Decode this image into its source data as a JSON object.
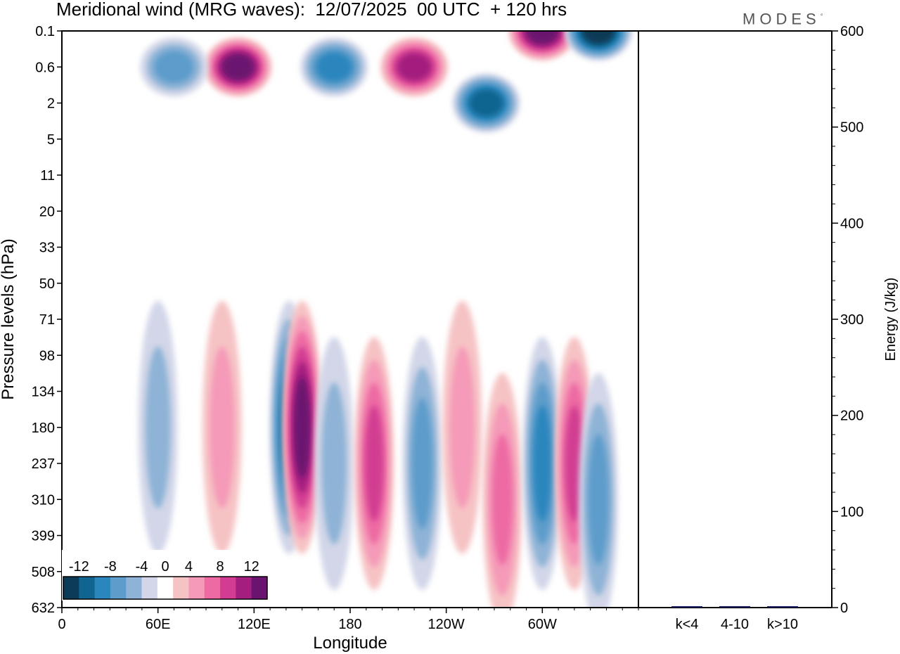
{
  "title": "Meridional wind (MRG waves):  12/07/2025  00 UTC  + 120 hrs",
  "logo": {
    "text": "MODES",
    "mark": "°"
  },
  "chart_data": [
    {
      "type": "heatmap",
      "description_role": "meridional wind longitude-pressure cross-section",
      "xlabel": "Longitude",
      "ylabel": "Pressure levels (hPa)",
      "x_ticks": [
        "0",
        "60E",
        "120E",
        "180",
        "120W",
        "60W"
      ],
      "x_tick_values_deg": [
        0,
        60,
        120,
        180,
        240,
        300
      ],
      "xlim_deg": [
        0,
        360
      ],
      "y_ticks": [
        "0.1",
        "0.6",
        "2",
        "5",
        "11",
        "20",
        "33",
        "50",
        "71",
        "98",
        "134",
        "180",
        "237",
        "310",
        "399",
        "508",
        "632"
      ],
      "colorbar": {
        "labels": [
          "-12",
          "-8",
          "-4",
          "0",
          "4",
          "8",
          "12"
        ],
        "label_values": [
          -12,
          -8,
          -4,
          0,
          4,
          8,
          12
        ],
        "levels": [
          -14,
          -12,
          -10,
          -8,
          -6,
          -4,
          -2,
          2,
          4,
          6,
          8,
          10,
          12,
          14
        ],
        "colors": [
          "#0b3b56",
          "#0f6590",
          "#2a86bd",
          "#5d9ccb",
          "#8eb3d6",
          "#d2d6e8",
          "#ffffff",
          "#f6c3c4",
          "#f59ab8",
          "#ed6aa3",
          "#d23c92",
          "#a31e7e",
          "#6a1470"
        ]
      },
      "features": [
        {
          "lon": 142,
          "level": "180",
          "value": -12
        },
        {
          "lon": 150,
          "level": "180",
          "value": 14
        },
        {
          "lon": 170,
          "level": "237",
          "value": -6
        },
        {
          "lon": 195,
          "level": "237",
          "value": 10
        },
        {
          "lon": 225,
          "level": "237",
          "value": -8
        },
        {
          "lon": 250,
          "level": "180",
          "value": 6
        },
        {
          "lon": 275,
          "level": "310",
          "value": 8
        },
        {
          "lon": 300,
          "level": "237",
          "value": -10
        },
        {
          "lon": 320,
          "level": "237",
          "value": 10
        },
        {
          "lon": 335,
          "level": "310",
          "value": -8
        },
        {
          "lon": 60,
          "level": "180",
          "value": -6
        },
        {
          "lon": 100,
          "level": "180",
          "value": 6
        },
        {
          "lon": 110,
          "level": "0.6",
          "value": 14
        },
        {
          "lon": 70,
          "level": "0.6",
          "value": -8
        },
        {
          "lon": 220,
          "level": "0.6",
          "value": 12
        },
        {
          "lon": 170,
          "level": "0.6",
          "value": -10
        },
        {
          "lon": 265,
          "level": "2",
          "value": -12
        },
        {
          "lon": 300,
          "level": "0.1",
          "value": 14
        },
        {
          "lon": 335,
          "level": "0.1",
          "value": -14
        }
      ]
    },
    {
      "type": "bar",
      "ylabel": "Energy (J/kg)",
      "categories": [
        "k<4",
        "4-10",
        "k>10"
      ],
      "values": [
        0.5,
        1.5,
        0.5
      ],
      "ylim": [
        0,
        600
      ],
      "y_ticks": [
        "0",
        "100",
        "200",
        "300",
        "400",
        "500",
        "600"
      ],
      "bar_color": "#1a1a5e"
    }
  ]
}
